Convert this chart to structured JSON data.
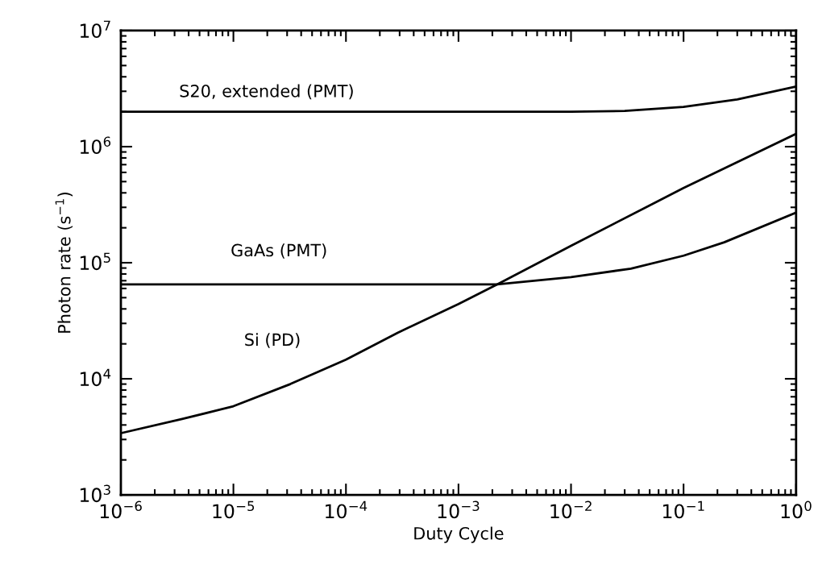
{
  "chart_data": {
    "type": "line",
    "xlabel": "Duty Cycle",
    "ylabel": "Photon rate (s$^{−1}$)",
    "log": "xy",
    "grid": false,
    "marker": "none",
    "line_style": "solid",
    "xlim": [
      1e-06,
      1
    ],
    "ylim": [
      1000,
      10000000
    ],
    "xticks": [
      {
        "value": 1e-06,
        "label": "10$^{−6}$"
      },
      {
        "value": 1e-05,
        "label": "10$^{−5}$"
      },
      {
        "value": 0.0001,
        "label": "10$^{−4}$"
      },
      {
        "value": 0.001,
        "label": "10$^{−3}$"
      },
      {
        "value": 0.01,
        "label": "10$^{−2}$"
      },
      {
        "value": 0.1,
        "label": "10$^{−1}$"
      },
      {
        "value": 1,
        "label": "10$^{0}$"
      }
    ],
    "yticks": [
      {
        "value": 1000,
        "label": "10$^{3}$"
      },
      {
        "value": 10000,
        "label": "10$^{4}$"
      },
      {
        "value": 100000,
        "label": "10$^{5}$"
      },
      {
        "value": 1000000,
        "label": "10$^{6}$"
      },
      {
        "value": 10000000,
        "label": "10$^{7}$"
      }
    ],
    "series": [
      {
        "name": "S20, extended (PMT)",
        "color": "#000000",
        "x": [
          1e-06,
          0.0001,
          0.001,
          0.01,
          0.03,
          0.1,
          0.3,
          1
        ],
        "values": [
          2000000,
          2000000,
          2000000,
          2000000,
          2030000,
          2200000,
          2550000,
          3300000
        ]
      },
      {
        "name": "GaAs (PMT)",
        "color": "#000000",
        "x": [
          1e-06,
          0.0001,
          0.0022,
          0.01,
          0.034,
          0.1,
          0.23,
          1
        ],
        "values": [
          65000,
          65000,
          65000,
          75000,
          89000,
          115000,
          150000,
          270000
        ]
      },
      {
        "name": "Si (PD)",
        "color": "#000000",
        "x": [
          1e-06,
          3.5e-06,
          1e-05,
          3.2e-05,
          0.0001,
          0.00029,
          0.001,
          0.0022,
          0.01,
          0.1,
          1
        ],
        "values": [
          3400,
          4500,
          5800,
          9000,
          14600,
          25000,
          44000,
          65000,
          140000,
          440000,
          1290000
        ]
      }
    ]
  }
}
